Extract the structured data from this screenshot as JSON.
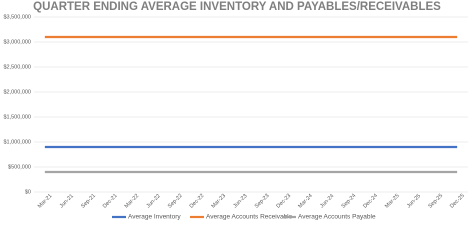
{
  "chart_data": {
    "type": "line",
    "title": "QUARTER ENDING AVERAGE INVENTORY AND PAYABLES/RECEIVABLES",
    "categories": [
      "Mar-21",
      "Jun-21",
      "Sep-21",
      "Dec-21",
      "Mar-22",
      "Jun-22",
      "Sep-22",
      "Dec-22",
      "Mar-23",
      "Jun-23",
      "Sep-23",
      "Dec-23",
      "Mar-24",
      "Jun-24",
      "Sep-24",
      "Dec-24",
      "Mar-25",
      "Jun-25",
      "Sep-25",
      "Dec-25"
    ],
    "series": [
      {
        "name": "Average Inventory",
        "color": "#4472c4",
        "values": [
          900000,
          900000,
          900000,
          900000,
          900000,
          900000,
          900000,
          900000,
          900000,
          900000,
          900000,
          900000,
          900000,
          900000,
          900000,
          900000,
          900000,
          900000,
          900000,
          900000
        ]
      },
      {
        "name": "Average Accounts Receivable",
        "color": "#ed7d31",
        "values": [
          3100000,
          3100000,
          3100000,
          3100000,
          3100000,
          3100000,
          3100000,
          3100000,
          3100000,
          3100000,
          3100000,
          3100000,
          3100000,
          3100000,
          3100000,
          3100000,
          3100000,
          3100000,
          3100000,
          3100000
        ]
      },
      {
        "name": "Average Accounts Payable",
        "color": "#a5a5a5",
        "values": [
          400000,
          400000,
          400000,
          400000,
          400000,
          400000,
          400000,
          400000,
          400000,
          400000,
          400000,
          400000,
          400000,
          400000,
          400000,
          400000,
          400000,
          400000,
          400000,
          400000
        ]
      }
    ],
    "ylim": [
      0,
      3500000
    ],
    "yticks": [
      {
        "value": 0,
        "label": "$0"
      },
      {
        "value": 500000,
        "label": "$500,000"
      },
      {
        "value": 1000000,
        "label": "$1,000,000"
      },
      {
        "value": 1500000,
        "label": "$1,500,000"
      },
      {
        "value": 2000000,
        "label": "$2,000,000"
      },
      {
        "value": 2500000,
        "label": "$2,500,000"
      },
      {
        "value": 3000000,
        "label": "$3,000,000"
      },
      {
        "value": 3500000,
        "label": "$3,500,000"
      }
    ],
    "grid": true,
    "legend": "bottom"
  }
}
